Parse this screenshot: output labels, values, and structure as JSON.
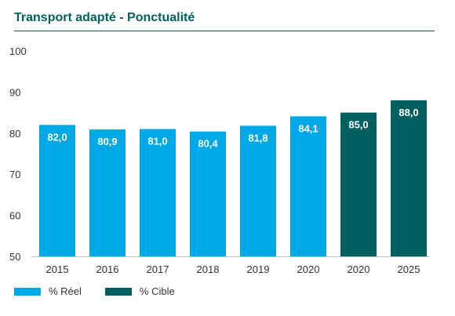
{
  "chart_data": {
    "type": "bar",
    "title": "Transport adapté - Ponctualité",
    "xlabel": "",
    "ylabel": "",
    "ylim": [
      50,
      100
    ],
    "yticks": [
      "50",
      "60",
      "70",
      "80",
      "90",
      "100"
    ],
    "grid": false,
    "categories": [
      "2015",
      "2016",
      "2017",
      "2018",
      "2019",
      "2020",
      "2020",
      "2025"
    ],
    "values": [
      82.0,
      80.9,
      81.0,
      80.4,
      81.8,
      84.1,
      85.0,
      88.0
    ],
    "value_labels": [
      "82,0",
      "80,9",
      "81,0",
      "80,4",
      "81,8",
      "84,1",
      "85,0",
      "88,0"
    ],
    "bar_series": [
      0,
      0,
      0,
      0,
      0,
      0,
      1,
      1
    ],
    "series": [
      {
        "name": "% Réel",
        "color": "#00a9e6"
      },
      {
        "name": "% Cible",
        "color": "#005f5f"
      }
    ],
    "legend_position": "bottom-left"
  }
}
